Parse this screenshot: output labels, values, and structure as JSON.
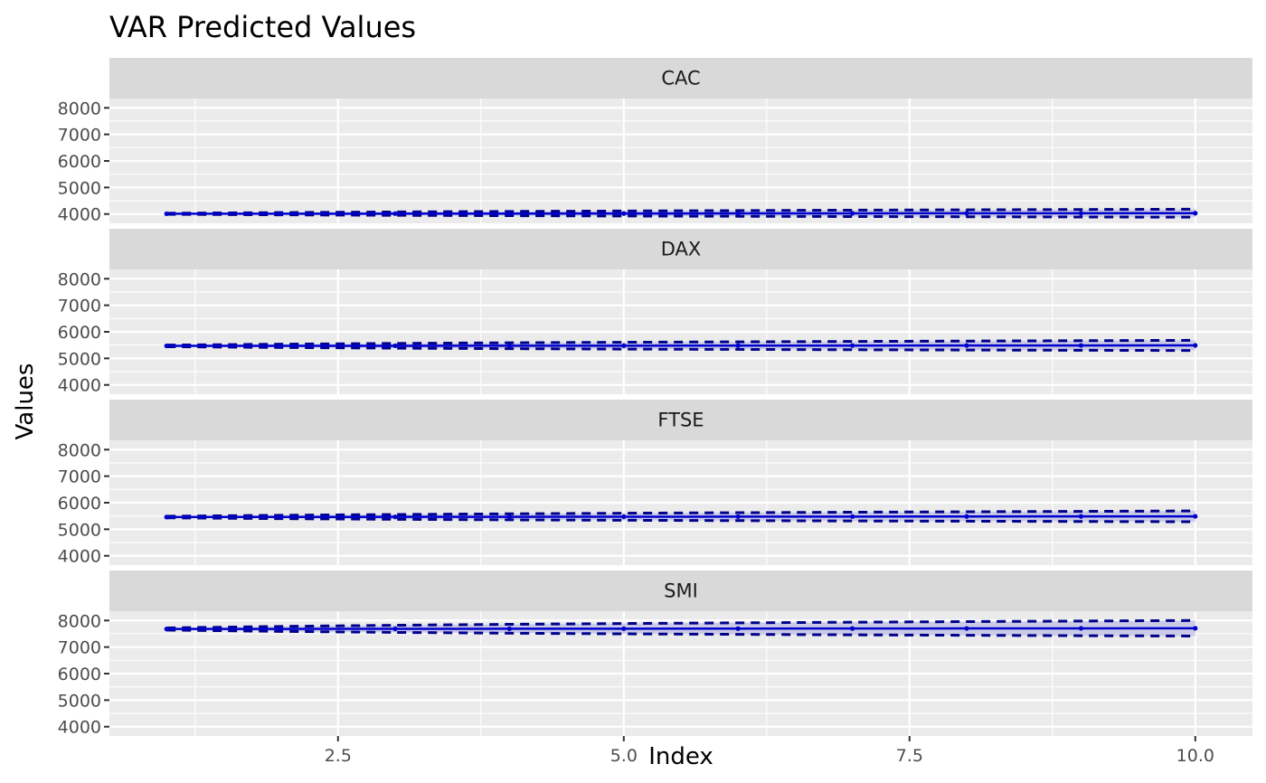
{
  "chart_data": {
    "type": "line",
    "title": "VAR Predicted Values",
    "xlabel": "Index",
    "ylabel": "Values",
    "xlim": [
      0.5,
      10.5
    ],
    "ylim": [
      3650,
      8350
    ],
    "x_ticks": [
      2.5,
      5.0,
      7.5,
      10.0
    ],
    "x_tick_labels": [
      "2.5",
      "5.0",
      "7.5",
      "10.0"
    ],
    "y_ticks": [
      4000,
      5000,
      6000,
      7000,
      8000
    ],
    "y_tick_labels": [
      "4000",
      "5000",
      "6000",
      "7000",
      "8000"
    ],
    "x": [
      1,
      2,
      3,
      4,
      5,
      6,
      7,
      8,
      9,
      10
    ],
    "grid": true,
    "legend": "none",
    "facets": [
      {
        "name": "CAC",
        "fcst": [
          4010,
          4012,
          4015,
          4018,
          4020,
          4023,
          4026,
          4028,
          4030,
          4032
        ],
        "lower": [
          3990,
          3970,
          3952,
          3938,
          3926,
          3916,
          3906,
          3898,
          3890,
          3882
        ],
        "upper": [
          4030,
          4054,
          4078,
          4098,
          4114,
          4130,
          4146,
          4158,
          4170,
          4182
        ]
      },
      {
        "name": "DAX",
        "fcst": [
          5470,
          5472,
          5474,
          5476,
          5478,
          5480,
          5482,
          5484,
          5486,
          5488
        ],
        "lower": [
          5440,
          5410,
          5385,
          5365,
          5350,
          5338,
          5326,
          5316,
          5306,
          5296
        ],
        "upper": [
          5500,
          5534,
          5563,
          5587,
          5606,
          5622,
          5638,
          5652,
          5666,
          5680
        ]
      },
      {
        "name": "FTSE",
        "fcst": [
          5460,
          5463,
          5466,
          5469,
          5472,
          5475,
          5478,
          5481,
          5484,
          5487
        ],
        "lower": [
          5430,
          5400,
          5376,
          5356,
          5340,
          5326,
          5314,
          5304,
          5294,
          5284
        ],
        "upper": [
          5490,
          5526,
          5556,
          5582,
          5604,
          5624,
          5642,
          5658,
          5674,
          5690
        ]
      },
      {
        "name": "SMI",
        "fcst": [
          7680,
          7683,
          7686,
          7689,
          7692,
          7695,
          7698,
          7701,
          7704,
          7707
        ],
        "lower": [
          7640,
          7590,
          7552,
          7522,
          7498,
          7478,
          7460,
          7444,
          7428,
          7414
        ],
        "upper": [
          7720,
          7776,
          7820,
          7856,
          7886,
          7912,
          7936,
          7958,
          7980,
          8000
        ]
      }
    ],
    "colors": {
      "forecast_line": "#0000cd",
      "interval_line": "#00008b",
      "ribbon": "#c6c6e6",
      "panel_bg": "#ebebeb",
      "strip_bg": "#d9d9d9",
      "grid_major": "#ffffff"
    }
  }
}
